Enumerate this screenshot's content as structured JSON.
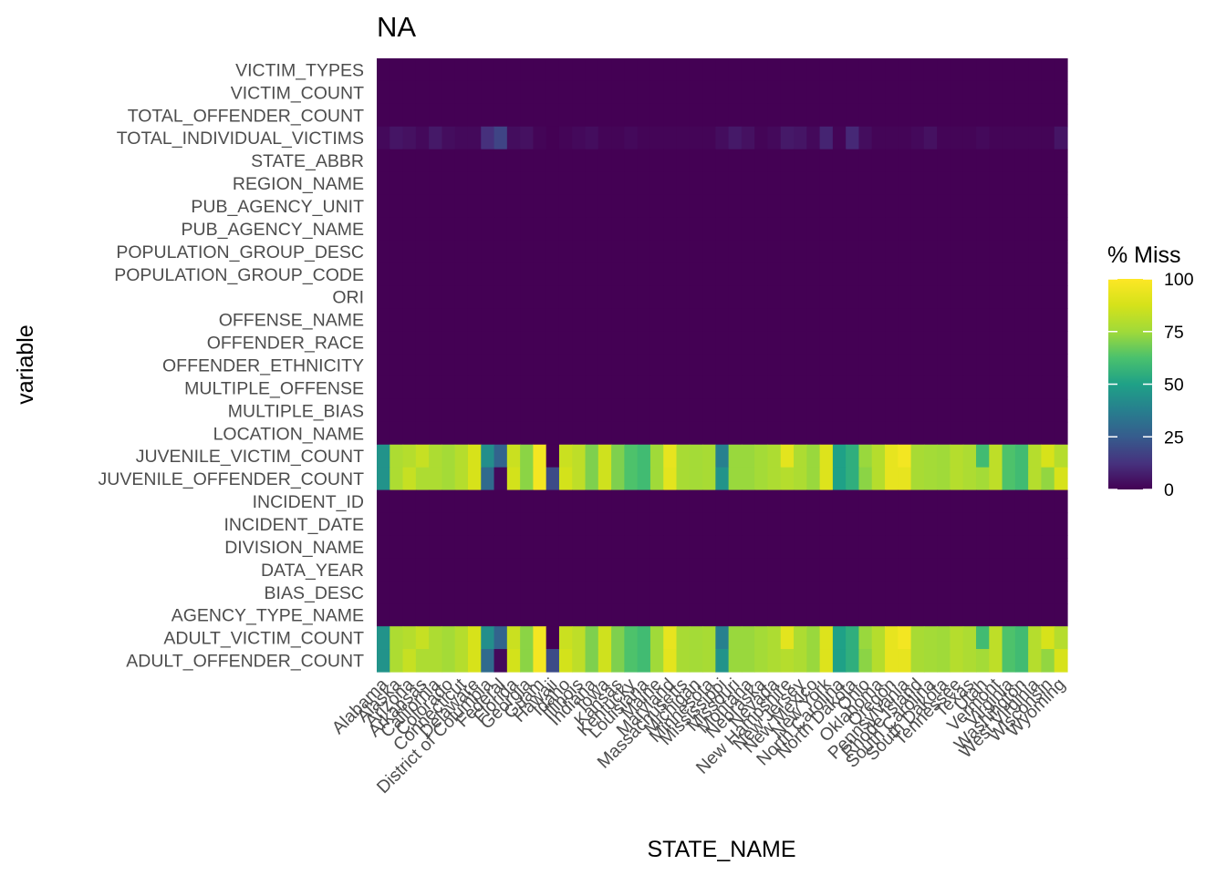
{
  "chart_data": {
    "type": "heatmap",
    "title": "NA",
    "xlabel": "STATE_NAME",
    "ylabel": "variable",
    "legend": {
      "title": "% Miss",
      "ticks": [
        0,
        25,
        50,
        75,
        100
      ],
      "range": [
        0,
        100
      ],
      "colormap": "viridis",
      "placement": "right"
    },
    "grid": false,
    "x_categories": [
      "Alabama",
      "Alaska",
      "Arizona",
      "Arkansas",
      "California",
      "Colorado",
      "Connecticut",
      "Delaware",
      "District of Columbia",
      "Federal",
      "Florida",
      "Georgia",
      "Guam",
      "Hawaii",
      "Idaho",
      "Illinois",
      "Indiana",
      "Iowa",
      "Kansas",
      "Kentucky",
      "Louisiana",
      "Maine",
      "Maryland",
      "Massachusetts",
      "Michigan",
      "Minnesota",
      "Mississippi",
      "Missouri",
      "Montana",
      "Nebraska",
      "Nevada",
      "New Hampshire",
      "New Jersey",
      "New Mexico",
      "New York",
      "North Carolina",
      "North Dakota",
      "Ohio",
      "Oklahoma",
      "Oregon",
      "Pennsylvania",
      "Rhode Island",
      "South Carolina",
      "South Dakota",
      "Tennessee",
      "Texas",
      "Utah",
      "Vermont",
      "Virginia",
      "Washington",
      "West Virginia",
      "Wisconsin",
      "Wyoming"
    ],
    "y_categories": [
      "VICTIM_TYPES",
      "VICTIM_COUNT",
      "TOTAL_OFFENDER_COUNT",
      "TOTAL_INDIVIDUAL_VICTIMS",
      "STATE_ABBR",
      "REGION_NAME",
      "PUB_AGENCY_UNIT",
      "PUB_AGENCY_NAME",
      "POPULATION_GROUP_DESC",
      "POPULATION_GROUP_CODE",
      "ORI",
      "OFFENSE_NAME",
      "OFFENDER_RACE",
      "OFFENDER_ETHNICITY",
      "MULTIPLE_OFFENSE",
      "MULTIPLE_BIAS",
      "LOCATION_NAME",
      "JUVENILE_VICTIM_COUNT",
      "JUVENILE_OFFENDER_COUNT",
      "INCIDENT_ID",
      "INCIDENT_DATE",
      "DIVISION_NAME",
      "DATA_YEAR",
      "BIAS_DESC",
      "AGENCY_TYPE_NAME",
      "ADULT_VICTIM_COUNT",
      "ADULT_OFFENDER_COUNT"
    ],
    "series": [
      {
        "variable": "TOTAL_INDIVIDUAL_VICTIMS",
        "values": [
          2,
          5,
          4,
          2,
          6,
          3,
          2,
          2,
          12,
          18,
          3,
          4,
          1,
          0,
          1,
          2,
          3,
          1,
          1,
          2,
          1,
          1,
          1,
          1,
          1,
          1,
          3,
          6,
          4,
          1,
          2,
          6,
          5,
          2,
          9,
          1,
          10,
          3,
          1,
          1,
          1,
          2,
          4,
          1,
          1,
          1,
          2,
          1,
          1,
          1,
          1,
          1,
          5
        ]
      },
      {
        "variable": "JUVENILE_VICTIM_COUNT",
        "values": [
          45,
          78,
          80,
          84,
          78,
          76,
          80,
          88,
          43,
          28,
          85,
          72,
          97,
          0,
          85,
          82,
          70,
          86,
          70,
          63,
          60,
          75,
          93,
          77,
          76,
          77,
          38,
          74,
          74,
          76,
          78,
          92,
          78,
          74,
          90,
          50,
          55,
          74,
          80,
          93,
          97,
          77,
          76,
          75,
          80,
          78,
          60,
          82,
          63,
          60,
          80,
          88,
          80
        ]
      },
      {
        "variable": "JUVENILE_OFFENDER_COUNT",
        "values": [
          45,
          78,
          84,
          78,
          78,
          76,
          80,
          88,
          30,
          2,
          87,
          72,
          97,
          20,
          87,
          82,
          70,
          86,
          70,
          63,
          60,
          75,
          92,
          77,
          76,
          77,
          45,
          74,
          74,
          76,
          78,
          80,
          78,
          74,
          90,
          50,
          55,
          72,
          80,
          93,
          93,
          77,
          76,
          75,
          80,
          78,
          76,
          82,
          63,
          60,
          80,
          73,
          88
        ]
      },
      {
        "variable": "ADULT_VICTIM_COUNT",
        "values": [
          45,
          78,
          80,
          84,
          78,
          76,
          80,
          88,
          43,
          28,
          85,
          72,
          97,
          0,
          85,
          82,
          70,
          86,
          70,
          63,
          60,
          75,
          93,
          77,
          76,
          77,
          38,
          74,
          74,
          76,
          78,
          92,
          78,
          74,
          90,
          50,
          55,
          74,
          80,
          93,
          97,
          77,
          76,
          75,
          80,
          78,
          60,
          82,
          63,
          60,
          80,
          88,
          80
        ]
      },
      {
        "variable": "ADULT_OFFENDER_COUNT",
        "values": [
          45,
          78,
          84,
          78,
          78,
          76,
          80,
          88,
          30,
          2,
          87,
          72,
          97,
          20,
          87,
          82,
          70,
          86,
          70,
          63,
          60,
          75,
          92,
          77,
          76,
          77,
          45,
          74,
          74,
          76,
          78,
          80,
          78,
          74,
          90,
          50,
          55,
          72,
          80,
          93,
          93,
          77,
          76,
          75,
          80,
          78,
          76,
          82,
          63,
          60,
          80,
          73,
          88
        ]
      }
    ],
    "default_value": 0
  }
}
